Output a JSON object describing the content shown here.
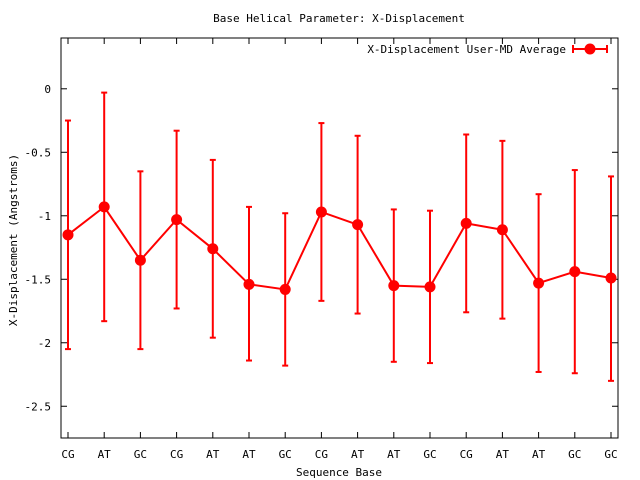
{
  "chart_data": {
    "type": "line",
    "title": "Base  Helical Parameter: X-Displacement",
    "xlabel": "Sequence Base",
    "ylabel": "X-Displacement (Angstroms)",
    "ylim": [
      -2.75,
      0.4
    ],
    "yticks": [
      0,
      -0.5,
      -1,
      -1.5,
      -2,
      -2.5
    ],
    "ytick_labels": [
      "0",
      "-0.5",
      "-1",
      "-1.5",
      "-2",
      "-2.5"
    ],
    "categories": [
      "CG",
      "AT",
      "GC",
      "CG",
      "AT",
      "AT",
      "GC",
      "CG",
      "AT",
      "AT",
      "GC",
      "CG",
      "AT",
      "AT",
      "GC",
      "GC"
    ],
    "grid": false,
    "legend_position": "top-right",
    "series": [
      {
        "name": "X-Displacement User-MD Average",
        "color": "#ff0000",
        "values": [
          -1.15,
          -0.93,
          -1.35,
          -1.03,
          -1.26,
          -1.54,
          -1.58,
          -0.97,
          -1.07,
          -1.55,
          -1.56,
          -1.06,
          -1.11,
          -1.53,
          -1.44,
          -1.49
        ],
        "err_low": [
          -2.05,
          -1.83,
          -2.05,
          -1.73,
          -1.96,
          -2.14,
          -2.18,
          -1.67,
          -1.77,
          -2.15,
          -2.16,
          -1.76,
          -1.81,
          -2.23,
          -2.24,
          -2.3
        ],
        "err_high": [
          -0.25,
          -0.03,
          -0.65,
          -0.33,
          -0.56,
          -0.93,
          -0.98,
          -0.27,
          -0.37,
          -0.95,
          -0.96,
          -0.36,
          -0.41,
          -0.83,
          -0.64,
          -0.69
        ]
      }
    ]
  }
}
